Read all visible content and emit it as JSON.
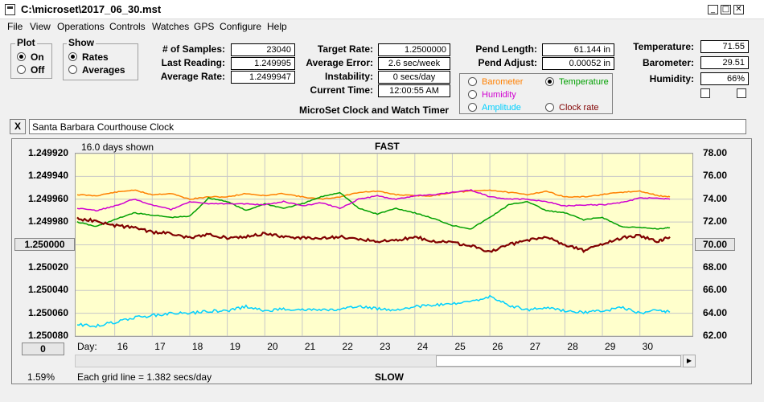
{
  "window": {
    "title": "C:\\microset\\2017_06_30.mst",
    "minimize": "_",
    "maximize": "□",
    "close": "✕"
  },
  "menu": [
    "File",
    "View",
    "Operations",
    "Controls",
    "Watches",
    "GPS",
    "Configure",
    "Help"
  ],
  "plot_group": {
    "title": "Plot",
    "options": [
      "On",
      "Off"
    ],
    "selected": "On"
  },
  "show_group": {
    "title": "Show",
    "options": [
      "Rates",
      "Averages"
    ],
    "selected": "Rates"
  },
  "stats": {
    "samples_label": "# of Samples:",
    "samples": "23040",
    "last_reading_label": "Last Reading:",
    "last_reading": "1.249995",
    "average_rate_label": "Average Rate:",
    "average_rate": "1.2499947",
    "target_rate_label": "Target Rate:",
    "target_rate": "1.2500000",
    "average_error_label": "Average Error:",
    "average_error": "2.6 sec/week",
    "instability_label": "Instability:",
    "instability": "0 secs/day",
    "current_time_label": "Current Time:",
    "current_time": "12:00:55 AM",
    "pend_length_label": "Pend Length:",
    "pend_length": "61.144 in",
    "pend_adjust_label": "Pend Adjust:",
    "pend_adjust": "0.00052 in",
    "temperature_label": "Temperature:",
    "temperature": "71.55",
    "barometer_label": "Barometer:",
    "barometer": "29.51",
    "humidity_label": "Humidity:",
    "humidity": "66%"
  },
  "app_caption": "MicroSet Clock and Watch Timer",
  "legend": {
    "options": [
      {
        "label": "Barometer",
        "color": "#ff8000",
        "selected": false
      },
      {
        "label": "Temperature",
        "color": "#00a000",
        "selected": true
      },
      {
        "label": "Humidity",
        "color": "#d000d0",
        "selected": false
      },
      {
        "label": "Clock rate",
        "color": "#800000",
        "selected": false
      },
      {
        "label": "Amplitude",
        "color": "#00d0ff",
        "selected": false
      }
    ]
  },
  "clock_name": "Santa Barbara Courthouse Clock",
  "clear_button": "X",
  "chart": {
    "days_shown": "16.0 days shown",
    "top_caption": "FAST",
    "bottom_caption": "SLOW",
    "grid_caption": "Each grid line = 1.382 secs/day",
    "percent": "1.59%",
    "left_ticks": [
      "1.249920",
      "1.249940",
      "1.249960",
      "1.249980",
      "1.250000",
      "1.250020",
      "1.250040",
      "1.250060",
      "1.250080"
    ],
    "right_ticks": [
      "78.00",
      "76.00",
      "74.00",
      "72.00",
      "70.00",
      "68.00",
      "66.00",
      "64.00",
      "62.00"
    ],
    "center_left_button": "1.250000",
    "center_right_button": "70.00",
    "offset_button": "0",
    "day_label": "Day:",
    "days": [
      "16",
      "17",
      "18",
      "19",
      "20",
      "21",
      "22",
      "23",
      "24",
      "25",
      "26",
      "27",
      "28",
      "29",
      "30"
    ]
  },
  "chart_data": {
    "type": "line",
    "x_days": [
      15.0,
      15.5,
      16.0,
      16.5,
      17.0,
      17.5,
      18.0,
      18.5,
      19.0,
      19.5,
      20.0,
      20.5,
      21.0,
      21.5,
      22.0,
      22.5,
      23.0,
      23.5,
      24.0,
      24.5,
      25.0,
      25.5,
      26.0,
      26.5,
      27.0,
      27.5,
      28.0,
      28.5,
      29.0,
      29.5,
      30.0,
      30.5,
      30.8
    ],
    "ylim_rate": [
      1.25008,
      1.24992
    ],
    "ylim_env": [
      62,
      78
    ],
    "series": [
      {
        "name": "Barometer",
        "color": "#ff8000",
        "values": [
          74.4,
          74.3,
          74.6,
          74.8,
          74.4,
          74.5,
          74.0,
          74.2,
          74.2,
          74.5,
          74.3,
          74.5,
          74.2,
          74.0,
          74.2,
          74.6,
          74.7,
          74.4,
          74.3,
          74.3,
          74.6,
          74.7,
          74.8,
          74.6,
          74.4,
          74.7,
          74.2,
          74.2,
          74.4,
          74.6,
          74.7,
          74.3,
          74.2
        ]
      },
      {
        "name": "Temperature",
        "color": "#00a000",
        "values": [
          72.0,
          71.6,
          72.2,
          72.8,
          72.6,
          72.4,
          72.5,
          74.1,
          73.8,
          73.0,
          73.6,
          73.2,
          73.6,
          74.2,
          74.6,
          73.2,
          72.7,
          73.2,
          72.8,
          72.3,
          71.7,
          71.4,
          72.4,
          73.5,
          73.8,
          73.0,
          72.8,
          72.2,
          72.4,
          71.6,
          71.5,
          71.4,
          71.5
        ]
      },
      {
        "name": "Humidity",
        "color": "#d000d0",
        "values": [
          73.2,
          73.0,
          73.4,
          74.0,
          73.5,
          73.1,
          73.8,
          73.6,
          73.6,
          73.6,
          73.5,
          73.8,
          73.4,
          73.7,
          73.2,
          74.0,
          74.3,
          74.0,
          74.3,
          74.4,
          74.6,
          74.8,
          74.2,
          74.0,
          74.0,
          73.8,
          73.4,
          73.5,
          73.5,
          73.7,
          74.1,
          74.1,
          74.0
        ]
      },
      {
        "name": "Clock rate",
        "color": "#800000",
        "values": [
          1.249977,
          1.249979,
          1.249983,
          1.249985,
          1.249989,
          1.24999,
          1.249994,
          1.249991,
          1.249994,
          1.249993,
          1.24999,
          1.249993,
          1.249994,
          1.249994,
          1.249993,
          1.249995,
          1.249997,
          1.249996,
          1.249993,
          1.249997,
          1.249998,
          1.250001,
          1.250006,
          1.25,
          1.249996,
          1.249993,
          1.25,
          1.250005,
          1.249999,
          1.249994,
          1.249992,
          1.249997,
          1.249993
        ]
      },
      {
        "name": "Amplitude",
        "color": "#00d0ff",
        "values": [
          63.0,
          62.9,
          63.2,
          63.6,
          63.8,
          64.0,
          64.0,
          64.2,
          64.2,
          64.6,
          64.2,
          64.4,
          64.3,
          64.3,
          64.3,
          64.6,
          64.4,
          64.3,
          64.6,
          64.7,
          64.8,
          65.0,
          65.5,
          64.7,
          64.3,
          64.5,
          64.2,
          64.1,
          64.2,
          64.5,
          64.0,
          64.3,
          64.1
        ]
      }
    ]
  }
}
